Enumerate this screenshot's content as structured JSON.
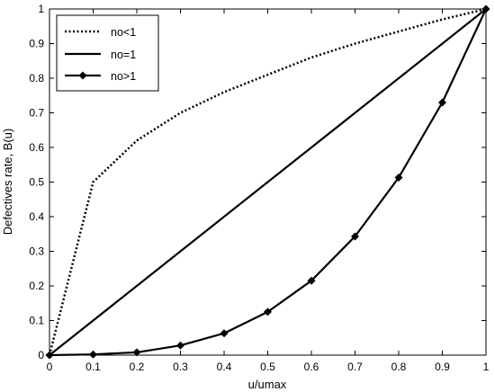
{
  "chart_data": {
    "type": "line",
    "xlabel": "u/umax",
    "ylabel": "Defectives rate, B(u)",
    "xlim": [
      0,
      1
    ],
    "ylim": [
      0,
      1
    ],
    "xticks": [
      "0",
      "0.1",
      "0.2",
      "0.3",
      "0.4",
      "0.5",
      "0.6",
      "0.7",
      "0.8",
      "0.9",
      "1"
    ],
    "yticks": [
      "0",
      "0.1",
      "0.2",
      "0.3",
      "0.4",
      "0.5",
      "0.6",
      "0.7",
      "0.8",
      "0.9",
      "1"
    ],
    "grid": false,
    "legend_position": "top-left",
    "series": [
      {
        "name": "no<1",
        "style": "dotted",
        "marker": "none",
        "color": "#000000",
        "x": [
          0,
          0.1,
          0.2,
          0.3,
          0.4,
          0.5,
          0.6,
          0.7,
          0.8,
          0.9,
          1.0
        ],
        "y": [
          0,
          0.5,
          0.62,
          0.7,
          0.76,
          0.81,
          0.86,
          0.9,
          0.935,
          0.97,
          1.0
        ]
      },
      {
        "name": "no=1",
        "style": "solid",
        "marker": "none",
        "color": "#000000",
        "x": [
          0,
          1
        ],
        "y": [
          0,
          1
        ]
      },
      {
        "name": "no>1",
        "style": "solid",
        "marker": "diamond",
        "color": "#000000",
        "x": [
          0,
          0.1,
          0.2,
          0.3,
          0.4,
          0.5,
          0.6,
          0.7,
          0.8,
          0.9,
          1.0
        ],
        "y": [
          0,
          0.002,
          0.008,
          0.028,
          0.063,
          0.125,
          0.215,
          0.343,
          0.513,
          0.73,
          1.0
        ]
      }
    ]
  }
}
